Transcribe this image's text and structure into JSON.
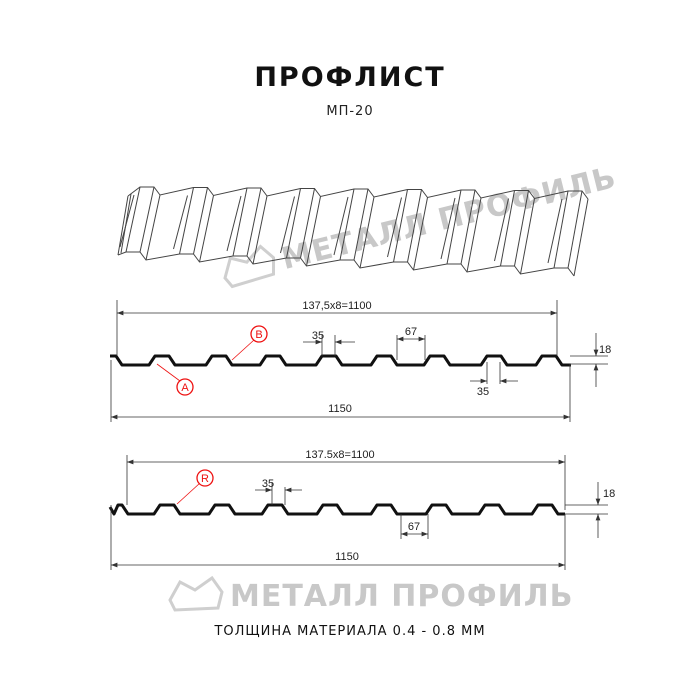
{
  "header": {
    "title": "ПРОФЛИСТ",
    "subtitle": "МП-20"
  },
  "watermark": {
    "text": "МЕТАЛЛ ПРОФИЛЬ"
  },
  "profile_a": {
    "width_useful": "137,5x8=1100",
    "width_total": "1150",
    "rib_top": "35",
    "rib_gap": "67",
    "rib_bottom": "35",
    "height": "18",
    "marker_a": "A",
    "marker_b": "B"
  },
  "profile_b": {
    "width_useful": "137.5x8=1100",
    "width_total": "1150",
    "rib_top": "35",
    "rib_gap": "67",
    "height": "18",
    "marker_r": "R"
  },
  "footer": {
    "thickness": "ТОЛЩИНА МАТЕРИАЛА 0.4 - 0.8 ММ"
  },
  "colors": {
    "marker": "#e11111",
    "profile": "#111111",
    "watermark": "#c8c8c8"
  }
}
